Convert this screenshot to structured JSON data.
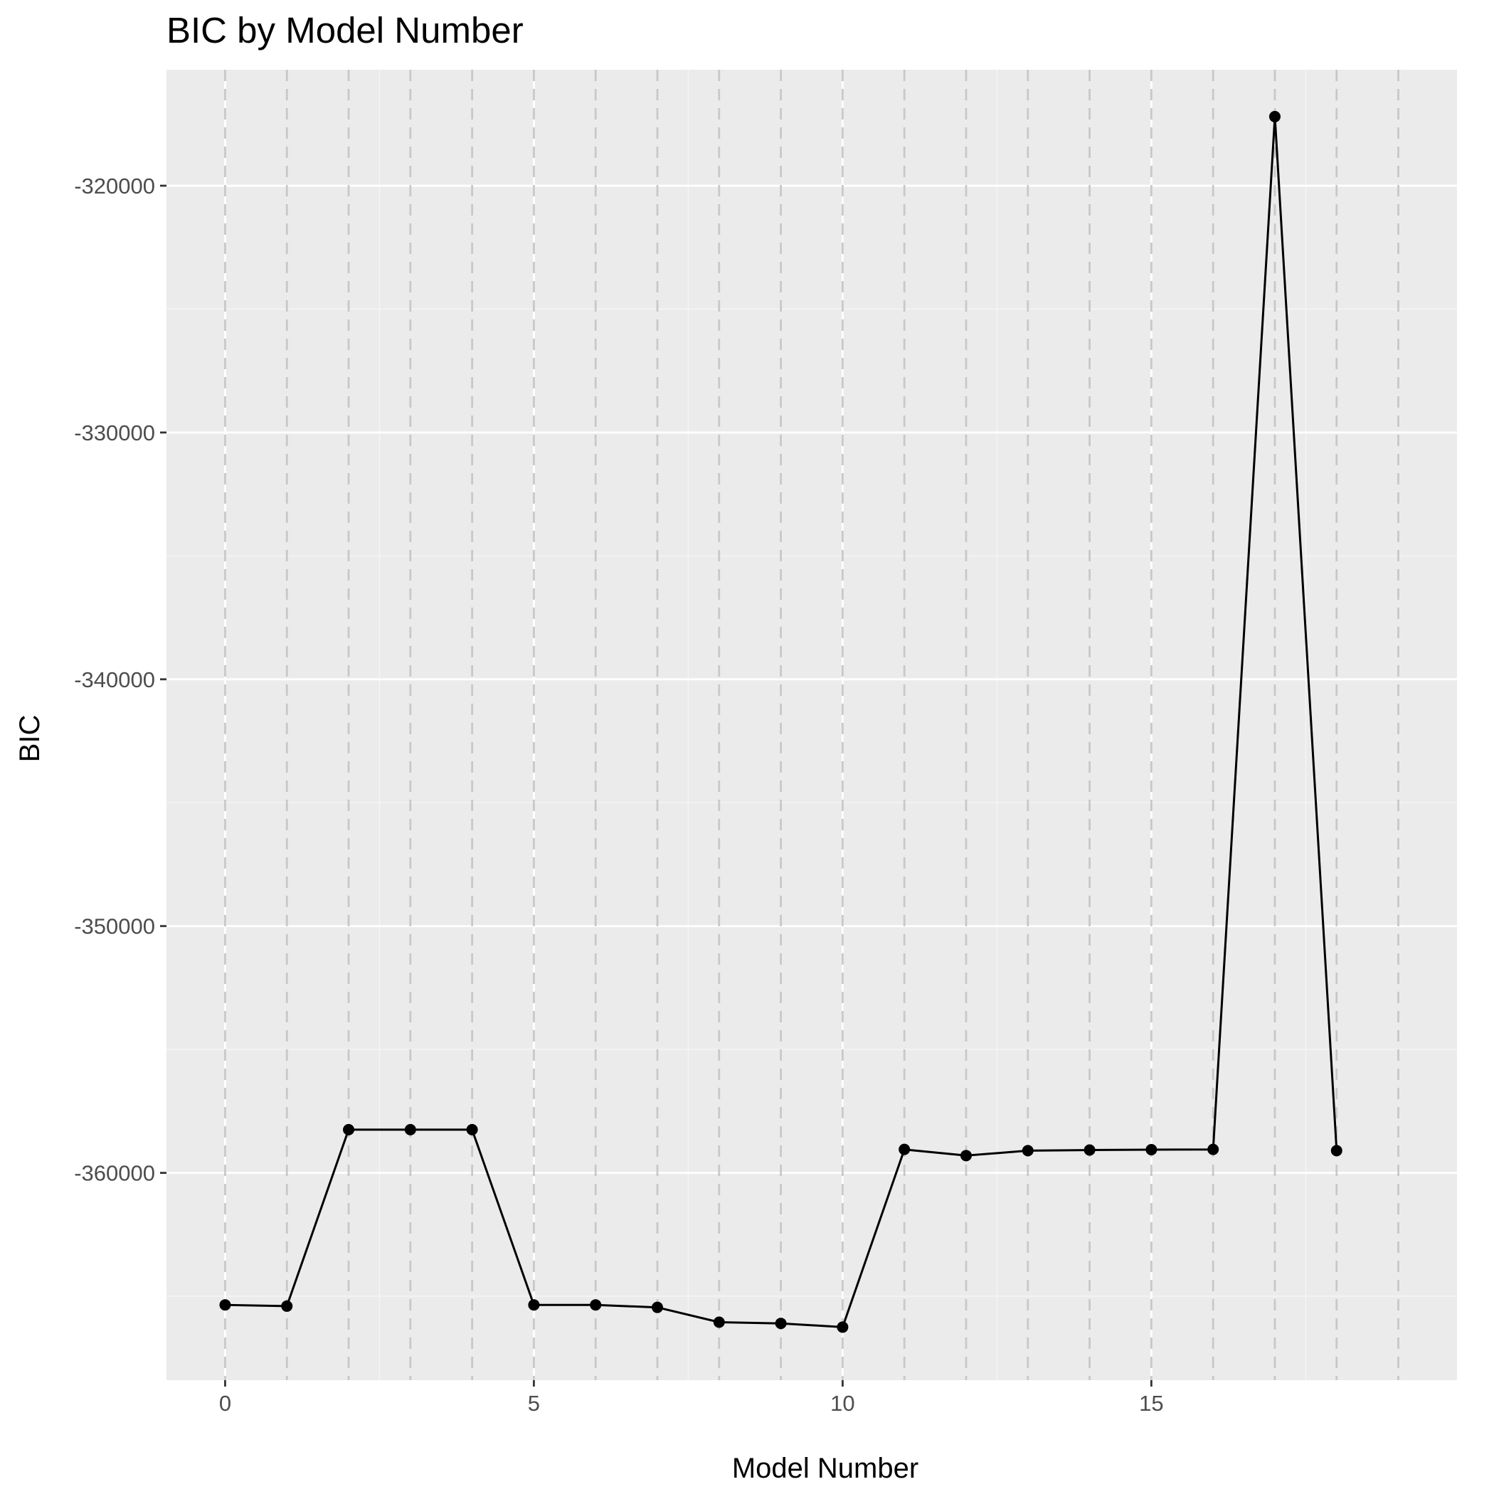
{
  "chart_data": {
    "type": "line",
    "title": "BIC by Model Number",
    "xlabel": "Model Number",
    "ylabel": "BIC",
    "xlim": [
      -0.95,
      19.95
    ],
    "ylim": [
      -368400,
      -315300
    ],
    "x_ticks": [
      0,
      5,
      10,
      15
    ],
    "x_tick_labels": [
      "0",
      "5",
      "10",
      "15"
    ],
    "y_ticks": [
      -320000,
      -330000,
      -340000,
      -350000,
      -360000
    ],
    "y_tick_labels": [
      "-320000",
      "-330000",
      "-340000",
      "-350000",
      "-360000"
    ],
    "x_minor_ticks": [
      2.5,
      7.5,
      12.5,
      17.5
    ],
    "y_minor_ticks": [
      -325000,
      -335000,
      -345000,
      -355000,
      -365000
    ],
    "vlines": [
      0,
      1,
      2,
      3,
      4,
      5,
      6,
      7,
      8,
      9,
      10,
      11,
      12,
      13,
      14,
      15,
      16,
      17,
      18,
      19
    ],
    "grid": true,
    "series": [
      {
        "name": "BIC",
        "x": [
          0,
          1,
          2,
          3,
          4,
          5,
          6,
          7,
          8,
          9,
          10,
          11,
          12,
          13,
          14,
          15,
          16,
          17,
          18
        ],
        "values": [
          -365350,
          -365400,
          -358250,
          -358250,
          -358250,
          -365350,
          -365350,
          -365450,
          -366050,
          -366100,
          -366250,
          -359050,
          -359300,
          -359100,
          -359075,
          -359060,
          -359050,
          -317200,
          -359100
        ]
      }
    ],
    "colors": {
      "panel_background": "#ebebeb",
      "grid_major": "#ffffff",
      "grid_minor": "#f5f5f5",
      "vline": "#c8c8c8",
      "line": "#000000",
      "point": "#000000",
      "tick_label": "#4d4d4d",
      "tick_mark": "#333333"
    }
  }
}
